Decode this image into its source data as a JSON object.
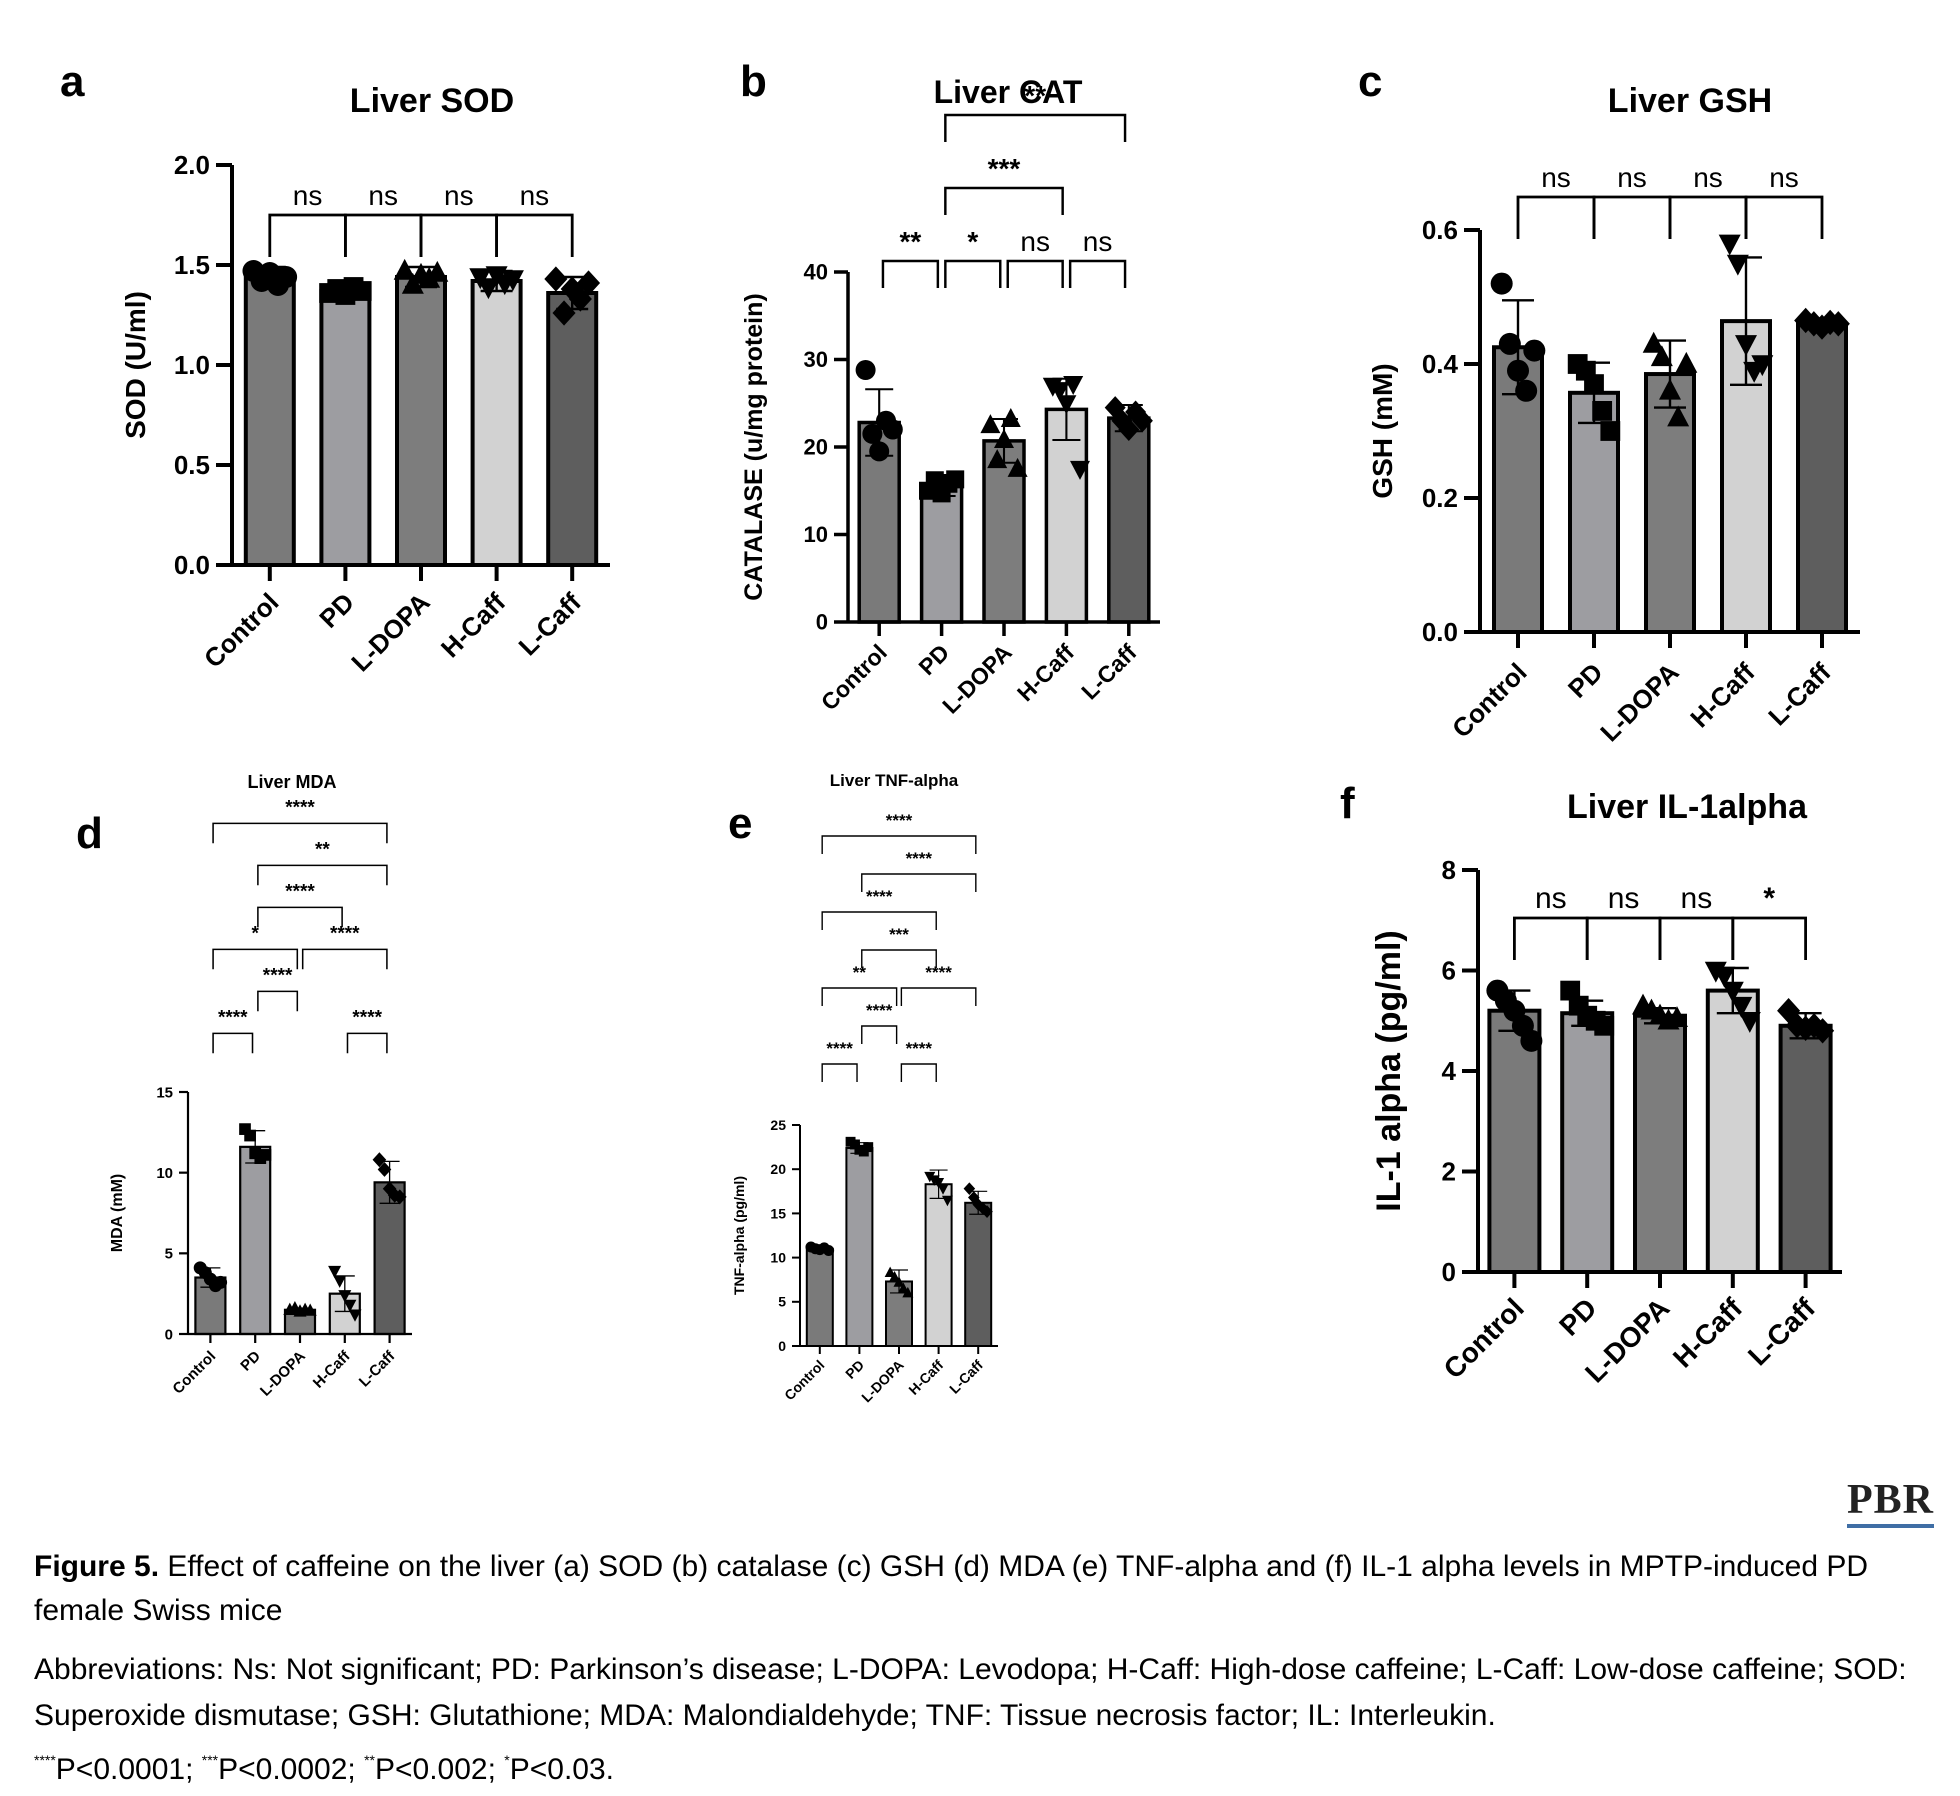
{
  "caption": {
    "journal_logo": "PBR",
    "figure_label": "Figure 5.",
    "figure_text": "Effect of caffeine on the liver (a) SOD (b) catalase (c) GSH (d) MDA (e) TNF-alpha and (f) IL-1 alpha levels in MPTP-induced PD female Swiss mice",
    "abbreviations": "Abbreviations: Ns: Not significant; PD: Parkinson’s disease; L-DOPA: Levodopa; H-Caff: High-dose caffeine; L-Caff: Low-dose caffeine; SOD: Superoxide dismutase; GSH: Glutathione; MDA: Malondialdehyde; TNF: Tissue necrosis factor; IL: Interleukin.",
    "pvalues": [
      {
        "stars": "****",
        "text": "P<0.0001; "
      },
      {
        "stars": "***",
        "text": "P<0.0002; "
      },
      {
        "stars": "**",
        "text": "P<0.002; "
      },
      {
        "stars": "*",
        "text": "P<0.03."
      }
    ]
  },
  "chart_data": [
    {
      "panel": "a",
      "type": "bar",
      "title": "Liver SOD",
      "ylabel": "SOD (U/ml)",
      "categories": [
        "Control",
        "PD",
        "L-DOPA",
        "H-Caff",
        "L-Caff"
      ],
      "ylim": [
        0,
        2.0
      ],
      "yticks": [
        "0.0",
        "0.5",
        "1.0",
        "1.5",
        "2.0"
      ],
      "ytick_values": [
        0,
        0.5,
        1.0,
        1.5,
        2.0
      ],
      "values": [
        1.44,
        1.37,
        1.44,
        1.42,
        1.36
      ],
      "errors": [
        0.05,
        0.03,
        0.05,
        0.05,
        0.08
      ],
      "points": [
        [
          1.47,
          1.42,
          1.46,
          1.4,
          1.44
        ],
        [
          1.36,
          1.38,
          1.35,
          1.39,
          1.37
        ],
        [
          1.47,
          1.4,
          1.45,
          1.43,
          1.46
        ],
        [
          1.44,
          1.39,
          1.45,
          1.41,
          1.43
        ],
        [
          1.43,
          1.26,
          1.38,
          1.33,
          1.41
        ]
      ],
      "markers": [
        "circle",
        "square",
        "triangle-up",
        "triangle-down",
        "diamond"
      ],
      "colors": [
        "#7a7a7a",
        "#9d9da1",
        "#7d7d7d",
        "#d2d2d2",
        "#5e5e5e"
      ],
      "comparisons": [
        {
          "from": 0,
          "to": 1,
          "label": "ns",
          "tier": 0
        },
        {
          "from": 1,
          "to": 2,
          "label": "ns",
          "tier": 0
        },
        {
          "from": 2,
          "to": 3,
          "label": "ns",
          "tier": 0
        },
        {
          "from": 3,
          "to": 4,
          "label": "ns",
          "tier": 0
        }
      ]
    },
    {
      "panel": "b",
      "type": "bar",
      "title": "Liver CAT",
      "ylabel": "CATALASE (u/mg protein)",
      "categories": [
        "Control",
        "PD",
        "L-DOPA",
        "H-Caff",
        "L-Caff"
      ],
      "ylim": [
        0,
        40
      ],
      "yticks": [
        "0",
        "10",
        "20",
        "30",
        "40"
      ],
      "ytick_values": [
        0,
        10,
        20,
        30,
        40
      ],
      "values": [
        22.8,
        15.6,
        20.7,
        24.3,
        23.3
      ],
      "errors": [
        3.8,
        1.2,
        2.5,
        3.5,
        1.5
      ],
      "points": [
        [
          28.8,
          21.5,
          19.5,
          23.0,
          22.0
        ],
        [
          15.0,
          16.2,
          14.7,
          15.8,
          16.3
        ],
        [
          22.5,
          18.5,
          20.8,
          23.2,
          17.5
        ],
        [
          27.0,
          26.5,
          25.0,
          27.2,
          17.5
        ],
        [
          24.5,
          23.0,
          22.0,
          24.0,
          23.0
        ]
      ],
      "markers": [
        "circle",
        "square",
        "triangle-up",
        "triangle-down",
        "diamond"
      ],
      "colors": [
        "#7a7a7a",
        "#9d9da1",
        "#7d7d7d",
        "#d2d2d2",
        "#5e5e5e"
      ],
      "comparisons": [
        {
          "from": 0,
          "to": 1,
          "label": "**",
          "tier": 0
        },
        {
          "from": 1,
          "to": 2,
          "label": "*",
          "tier": 0
        },
        {
          "from": 2,
          "to": 3,
          "label": "ns",
          "tier": 0
        },
        {
          "from": 3,
          "to": 4,
          "label": "ns",
          "tier": 0
        },
        {
          "from": 1,
          "to": 3,
          "label": "***",
          "tier": 1
        },
        {
          "from": 1,
          "to": 4,
          "label": "**",
          "tier": 2
        }
      ]
    },
    {
      "panel": "c",
      "type": "bar",
      "title": "Liver GSH",
      "ylabel": "GSH (mM)",
      "categories": [
        "Control",
        "PD",
        "L-DOPA",
        "H-Caff",
        "L-Caff"
      ],
      "ylim": [
        0,
        0.6
      ],
      "yticks": [
        "0.0",
        "0.2",
        "0.4",
        "0.6"
      ],
      "ytick_values": [
        0,
        0.2,
        0.4,
        0.6
      ],
      "values": [
        0.425,
        0.357,
        0.385,
        0.464,
        0.46
      ],
      "errors": [
        0.07,
        0.045,
        0.05,
        0.095,
        0.005
      ],
      "points": [
        [
          0.52,
          0.43,
          0.39,
          0.36,
          0.42
        ],
        [
          0.4,
          0.39,
          0.37,
          0.33,
          0.3
        ],
        [
          0.43,
          0.41,
          0.36,
          0.32,
          0.4
        ],
        [
          0.58,
          0.55,
          0.43,
          0.39,
          0.4
        ],
        [
          0.465,
          0.46,
          0.455,
          0.462,
          0.46
        ]
      ],
      "markers": [
        "circle",
        "square",
        "triangle-up",
        "triangle-down",
        "diamond"
      ],
      "colors": [
        "#7a7a7a",
        "#9d9da1",
        "#7d7d7d",
        "#d2d2d2",
        "#5e5e5e"
      ],
      "comparisons": [
        {
          "from": 0,
          "to": 1,
          "label": "ns",
          "tier": 0
        },
        {
          "from": 1,
          "to": 2,
          "label": "ns",
          "tier": 0
        },
        {
          "from": 2,
          "to": 3,
          "label": "ns",
          "tier": 0
        },
        {
          "from": 3,
          "to": 4,
          "label": "ns",
          "tier": 0
        }
      ]
    },
    {
      "panel": "d",
      "type": "bar",
      "title": "Liver MDA",
      "ylabel": "MDA (mM)",
      "categories": [
        "Control",
        "PD",
        "L-DOPA",
        "H-Caff",
        "L-Caff"
      ],
      "ylim": [
        0,
        15
      ],
      "yticks": [
        "0",
        "5",
        "10",
        "15"
      ],
      "ytick_values": [
        0,
        5,
        10,
        15
      ],
      "values": [
        3.5,
        11.6,
        1.5,
        2.5,
        9.4
      ],
      "errors": [
        0.6,
        1.0,
        0.1,
        1.1,
        1.3
      ],
      "points": [
        [
          4.1,
          3.8,
          3.4,
          3.0,
          3.2
        ],
        [
          12.7,
          12.3,
          11.2,
          10.9,
          11.1
        ],
        [
          1.5,
          1.6,
          1.4,
          1.5,
          1.45
        ],
        [
          3.9,
          3.3,
          2.4,
          1.8,
          1.2
        ],
        [
          10.8,
          10.2,
          9.0,
          8.6,
          8.5
        ]
      ],
      "markers": [
        "circle",
        "square",
        "triangle-up",
        "triangle-down",
        "diamond"
      ],
      "colors": [
        "#7a7a7a",
        "#9d9da1",
        "#7d7d7d",
        "#d2d2d2",
        "#5e5e5e"
      ],
      "comparisons": [
        {
          "from": 0,
          "to": 1,
          "label": "****",
          "tier": 0
        },
        {
          "from": 3,
          "to": 4,
          "label": "****",
          "tier": 0
        },
        {
          "from": 1,
          "to": 2,
          "label": "****",
          "tier": 1
        },
        {
          "from": 0,
          "to": 2,
          "label": "*",
          "tier": 2
        },
        {
          "from": 2,
          "to": 4,
          "label": "****",
          "tier": 2
        },
        {
          "from": 1,
          "to": 3,
          "label": "****",
          "tier": 3
        },
        {
          "from": 1,
          "to": 4,
          "label": "**",
          "tier": 4
        },
        {
          "from": 0,
          "to": 4,
          "label": "****",
          "tier": 5
        }
      ]
    },
    {
      "panel": "e",
      "type": "bar",
      "title": "Liver TNF-alpha",
      "ylabel": "TNF-alpha (pg/ml)",
      "categories": [
        "Control",
        "PD",
        "L-DOPA",
        "H-Caff",
        "L-Caff"
      ],
      "ylim": [
        0,
        25
      ],
      "yticks": [
        "0",
        "5",
        "10",
        "15",
        "20",
        "25"
      ],
      "ytick_values": [
        0,
        5,
        10,
        15,
        20,
        25
      ],
      "values": [
        11.0,
        22.4,
        7.3,
        18.3,
        16.2
      ],
      "errors": [
        0.2,
        0.6,
        1.3,
        1.6,
        1.3
      ],
      "points": [
        [
          11.2,
          11.0,
          10.9,
          11.1,
          10.8
        ],
        [
          23.1,
          22.8,
          22.2,
          22.0,
          22.5
        ],
        [
          8.3,
          7.8,
          7.2,
          6.5,
          6.0
        ],
        [
          19.2,
          18.8,
          18.5,
          17.8,
          16.5
        ],
        [
          17.8,
          16.8,
          16.0,
          15.6,
          15.2
        ]
      ],
      "markers": [
        "circle",
        "square",
        "triangle-up",
        "triangle-down",
        "diamond"
      ],
      "colors": [
        "#7a7a7a",
        "#9d9da1",
        "#7d7d7d",
        "#d2d2d2",
        "#5e5e5e"
      ],
      "comparisons": [
        {
          "from": 0,
          "to": 1,
          "label": "****",
          "tier": 0
        },
        {
          "from": 2,
          "to": 3,
          "label": "****",
          "tier": 0
        },
        {
          "from": 1,
          "to": 2,
          "label": "****",
          "tier": 1
        },
        {
          "from": 0,
          "to": 2,
          "label": "**",
          "tier": 2
        },
        {
          "from": 2,
          "to": 4,
          "label": "****",
          "tier": 2
        },
        {
          "from": 1,
          "to": 3,
          "label": "***",
          "tier": 3
        },
        {
          "from": 0,
          "to": 3,
          "label": "****",
          "tier": 4
        },
        {
          "from": 1,
          "to": 4,
          "label": "****",
          "tier": 5
        },
        {
          "from": 0,
          "to": 4,
          "label": "****",
          "tier": 6
        }
      ]
    },
    {
      "panel": "f",
      "type": "bar",
      "title": "Liver IL-1alpha",
      "ylabel": "IL-1 alpha (pg/ml)",
      "categories": [
        "Control",
        "PD",
        "L-DOPA",
        "H-Caff",
        "L-Caff"
      ],
      "ylim": [
        0,
        8
      ],
      "yticks": [
        "0",
        "2",
        "4",
        "6",
        "8"
      ],
      "ytick_values": [
        0,
        2,
        4,
        6,
        8
      ],
      "values": [
        5.2,
        5.15,
        5.1,
        5.6,
        4.9
      ],
      "errors": [
        0.4,
        0.25,
        0.15,
        0.45,
        0.25
      ],
      "points": [
        [
          5.6,
          5.4,
          5.2,
          4.9,
          4.6
        ],
        [
          5.6,
          5.3,
          5.1,
          5.0,
          4.9
        ],
        [
          5.3,
          5.2,
          5.1,
          5.0,
          5.05
        ],
        [
          6.0,
          5.9,
          5.6,
          5.3,
          5.0
        ],
        [
          5.2,
          4.9,
          4.85,
          4.9,
          4.8
        ]
      ],
      "markers": [
        "circle",
        "square",
        "triangle-up",
        "triangle-down",
        "diamond"
      ],
      "colors": [
        "#7a7a7a",
        "#9d9da1",
        "#7d7d7d",
        "#d2d2d2",
        "#5e5e5e"
      ],
      "comparisons": [
        {
          "from": 0,
          "to": 1,
          "label": "ns",
          "tier": 0
        },
        {
          "from": 1,
          "to": 2,
          "label": "ns",
          "tier": 0
        },
        {
          "from": 2,
          "to": 3,
          "label": "ns",
          "tier": 0
        },
        {
          "from": 3,
          "to": 4,
          "label": "*",
          "tier": 0
        }
      ]
    }
  ]
}
